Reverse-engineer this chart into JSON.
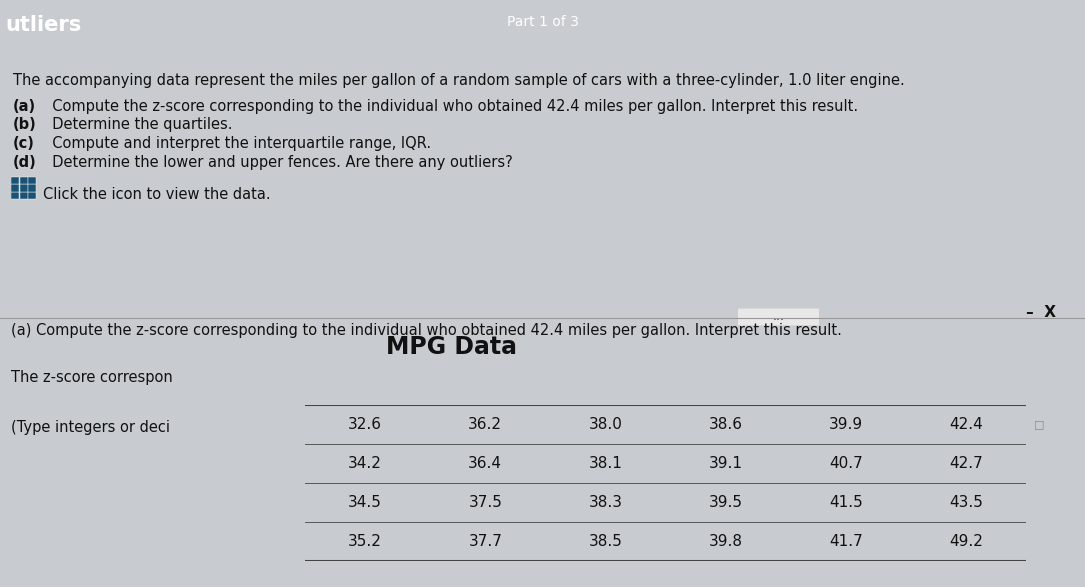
{
  "header_text": "utliers",
  "part_text": "Part 1 of 3",
  "top_paragraph": "The accompanying data represent the miles per gallon of a random sample of cars with a three-cylinder, 1.0 liter engine.",
  "items": [
    "(a)  Compute the z-score corresponding to the individual who obtained 42.4 miles per gallon. Interpret this result.",
    "(b)  Determine the quartiles.",
    "(c)  Compute and interpret the interquartile range, IQR.",
    "(d)  Determine the lower and upper fences. Are there any outliers?"
  ],
  "click_text": "Click the icon to view the data.",
  "section_a_text": "(a) Compute the z-score corresponding to the individual who obtained 42.4 miles per gallon. Interpret this result.",
  "zscore_label": "The z-score correspon",
  "type_label": "(Type integers or deci",
  "modal_title": "MPG Data",
  "modal_minus": "–",
  "modal_x": "X",
  "table_data": [
    [
      "32.6",
      "36.2",
      "38.0",
      "38.6",
      "39.9",
      "42.4"
    ],
    [
      "34.2",
      "36.4",
      "38.1",
      "39.1",
      "40.7",
      "42.7"
    ],
    [
      "34.5",
      "37.5",
      "38.3",
      "39.5",
      "41.5",
      "43.5"
    ],
    [
      "35.2",
      "37.7",
      "38.5",
      "39.8",
      "41.7",
      "49.2"
    ]
  ],
  "bg_top": "#c8ccd0",
  "bg_bottom": "#d4d8dc",
  "modal_bg": "#f2f2f2",
  "header_bar_color": "#1a5276",
  "table_border_color": "#444444",
  "text_color": "#111111",
  "dots_btn_color": "#e8e8e8",
  "modal_border_color": "#4a6fa0",
  "divider_color": "#999999"
}
